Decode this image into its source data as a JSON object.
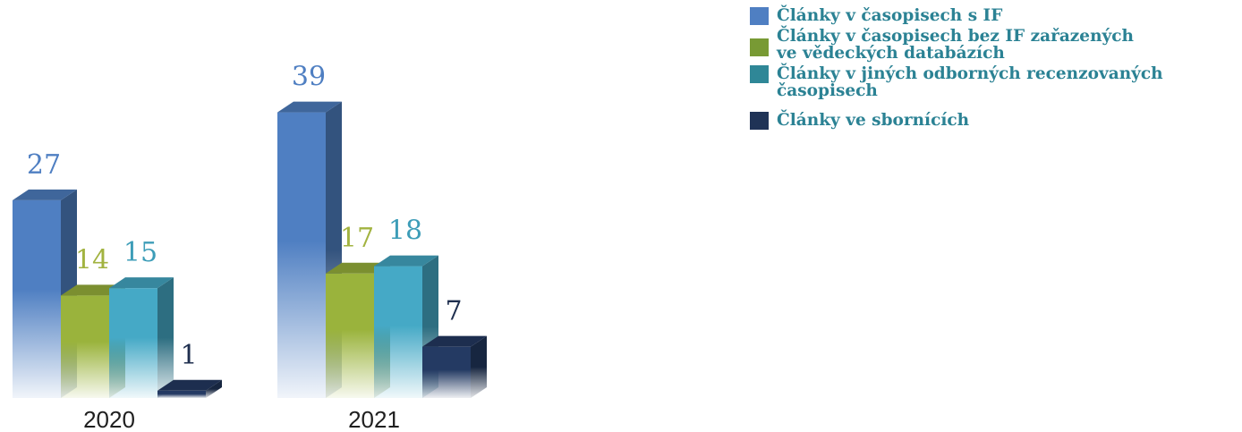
{
  "chart_data": {
    "type": "bar",
    "categories": [
      "2020",
      "2021"
    ],
    "series": [
      {
        "name": "Články v časopisech s IF",
        "values": [
          27,
          39
        ],
        "color": "#4f7fc2",
        "label_color": "#4f7fc2"
      },
      {
        "name": "Články v časopisech bez IF zařazených ve vědeckých databázích",
        "values": [
          14,
          17
        ],
        "color": "#9ab33c",
        "label_color": "#a2b340"
      },
      {
        "name": "Články v jiných odborných recenzovaných časopisech",
        "values": [
          15,
          18
        ],
        "color": "#45a9c6",
        "label_color": "#3d9db8"
      },
      {
        "name": "Články ve sbornících",
        "values": [
          1,
          7
        ],
        "color": "#243a63",
        "label_color": "#1f2f4f"
      }
    ],
    "legend": {
      "position": "top-right",
      "items": [
        {
          "label_lines": [
            "Články v časopisech s IF"
          ],
          "color": "#4f7fc2"
        },
        {
          "label_lines": [
            "Články v časopisech bez IF zařazených",
            "ve vědeckých databázích"
          ],
          "color": "#789a34"
        },
        {
          "label_lines": [
            "Články v jiných odborných recenzovaných časopisech"
          ],
          "color": "#2f8797"
        },
        {
          "label_lines": [
            "Články ve sbornících"
          ],
          "color": "#1f3356"
        }
      ]
    },
    "style": "3d-bars",
    "axes_visible": false,
    "grid": false
  }
}
